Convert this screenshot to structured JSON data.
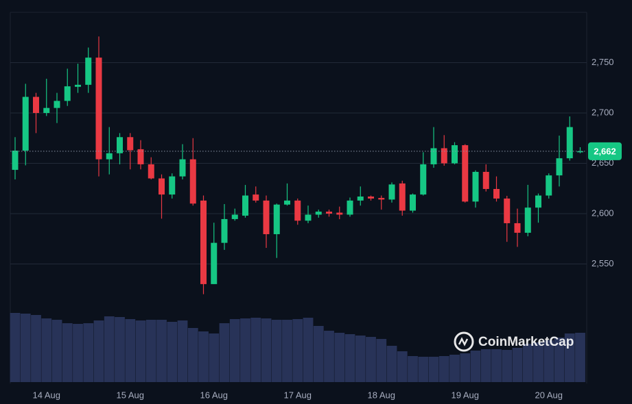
{
  "chart_data": {
    "type": "candlestick",
    "categories": [
      null,
      null,
      null,
      "14 Aug",
      null,
      null,
      null,
      null,
      null,
      null,
      null,
      "15 Aug",
      null,
      null,
      null,
      null,
      null,
      null,
      null,
      "16 Aug",
      null,
      null,
      null,
      null,
      null,
      null,
      null,
      "17 Aug",
      null,
      null,
      null,
      null,
      null,
      null,
      null,
      "18 Aug",
      null,
      null,
      null,
      null,
      null,
      null,
      null,
      "19 Aug",
      null,
      null,
      null,
      null,
      null,
      null,
      null,
      "20 Aug",
      null,
      null,
      null
    ],
    "open": [
      2643.5,
      2662.6,
      2716,
      2700,
      2705,
      2712,
      2726,
      2728,
      2755,
      2654,
      2660,
      2676,
      2664,
      2649,
      2635,
      2619,
      2637,
      2654,
      2613,
      2530,
      2571,
      2594.6,
      2598,
      2619,
      2613,
      2579.6,
      2609,
      2613,
      2593,
      2599,
      2602,
      2601,
      2599,
      2613,
      2617,
      2615.6,
      2614,
      2630,
      2603,
      2619,
      2649,
      2665,
      2650,
      2668,
      2612,
      2641.5,
      2624.5,
      2615,
      2590.5,
      2581,
      2606,
      2618,
      2638,
      2655,
      2661
    ],
    "high": [
      2676,
      2729,
      2720,
      2734,
      2720,
      2744,
      2749,
      2765,
      2776,
      2686,
      2680,
      2680,
      2673,
      2656,
      2639,
      2640,
      2669,
      2675,
      2618,
      2591,
      2609.5,
      2605,
      2628.5,
      2627,
      2618,
      2610,
      2630,
      2615,
      2608,
      2604,
      2604,
      2607,
      2616,
      2627,
      2618,
      2618,
      2631,
      2632.7,
      2620,
      2661,
      2686,
      2678,
      2671,
      2669,
      2643,
      2649,
      2637,
      2617.7,
      2605,
      2628.6,
      2620,
      2640,
      2677.5,
      2696.6,
      2666
    ],
    "low": [
      2634,
      2648,
      2680,
      2697,
      2690,
      2707,
      2720,
      2720,
      2637,
      2639,
      2649,
      2644,
      2644,
      2634,
      2595,
      2615,
      2634,
      2608,
      2520,
      2530,
      2564,
      2593,
      2596,
      2611,
      2566,
      2556,
      2608,
      2589,
      2590.5,
      2596,
      2597,
      2594.5,
      2597,
      2608,
      2613,
      2604,
      2611,
      2598,
      2601,
      2618,
      2645.6,
      2647.6,
      2649,
      2611,
      2606,
      2622,
      2612,
      2572,
      2567,
      2577.5,
      2591,
      2615,
      2627,
      2652.7,
      2660
    ],
    "close": [
      2662.6,
      2716,
      2700,
      2705,
      2712,
      2726.5,
      2728,
      2755,
      2654,
      2660,
      2676,
      2663,
      2649,
      2635,
      2619,
      2637,
      2654,
      2610,
      2530,
      2571,
      2594.6,
      2599,
      2618,
      2613,
      2579.6,
      2609,
      2613,
      2593,
      2599,
      2602,
      2600,
      2599,
      2613,
      2617,
      2615,
      2614,
      2629,
      2603,
      2619,
      2649,
      2665,
      2650,
      2668,
      2612,
      2641.5,
      2624.5,
      2615,
      2590.5,
      2581,
      2606,
      2618,
      2638,
      2655,
      2686,
      2662
    ],
    "volumes": [
      101,
      100,
      98,
      93,
      91,
      86,
      85,
      86,
      90,
      96,
      95,
      92,
      90,
      91,
      91,
      88,
      90,
      79,
      74,
      71,
      86,
      92,
      93,
      94,
      93,
      91,
      91,
      92,
      94,
      82,
      75,
      72,
      70,
      68,
      66,
      63,
      53,
      45,
      38,
      37,
      37,
      38,
      40,
      42,
      46,
      48,
      48,
      47,
      50,
      56,
      58,
      61,
      65,
      71,
      72
    ],
    "volume_ylim": [
      0,
      110
    ],
    "ylim": [
      2510,
      2800
    ],
    "yticks": [
      {
        "value": 2550,
        "label": "2,550"
      },
      {
        "value": 2600,
        "label": "2,600"
      },
      {
        "value": 2650,
        "label": "2,650"
      },
      {
        "value": 2700,
        "label": "2,700"
      },
      {
        "value": 2750,
        "label": "2,750"
      }
    ],
    "grid": true,
    "last_price": {
      "value": 2662,
      "label": "2,662"
    },
    "up_color": "#16c784",
    "down_color": "#ea3943",
    "volume_color": "#283358",
    "watermark": "CoinMarketCap"
  }
}
